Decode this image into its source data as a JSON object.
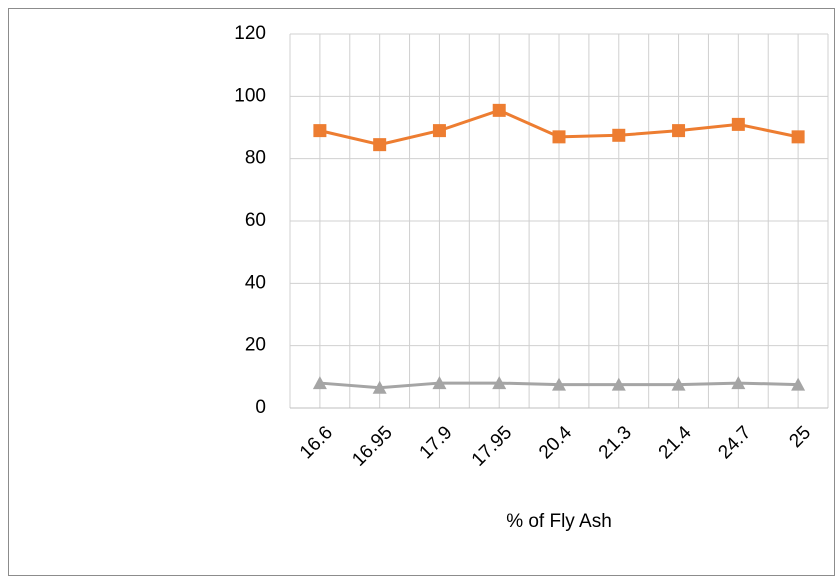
{
  "chart_data": {
    "type": "line",
    "categories": [
      "16.6",
      "16.95",
      "17.9",
      "17.95",
      "20.4",
      "21.3",
      "21.4",
      "24.7",
      "25"
    ],
    "series": [
      {
        "color": "#ed7d31",
        "marker": "square",
        "values": [
          89,
          84.5,
          89,
          95.5,
          87,
          87.5,
          89,
          91,
          87
        ]
      },
      {
        "color": "#a5a5a5",
        "marker": "triangle",
        "values": [
          8,
          6.5,
          8,
          8,
          7.5,
          7.5,
          7.5,
          8,
          7.5
        ]
      }
    ],
    "xlabel": "% of Fly Ash",
    "ylim": [
      0,
      120
    ],
    "yticks": [
      0,
      20,
      40,
      60,
      80,
      100,
      120
    ],
    "grid": true
  }
}
